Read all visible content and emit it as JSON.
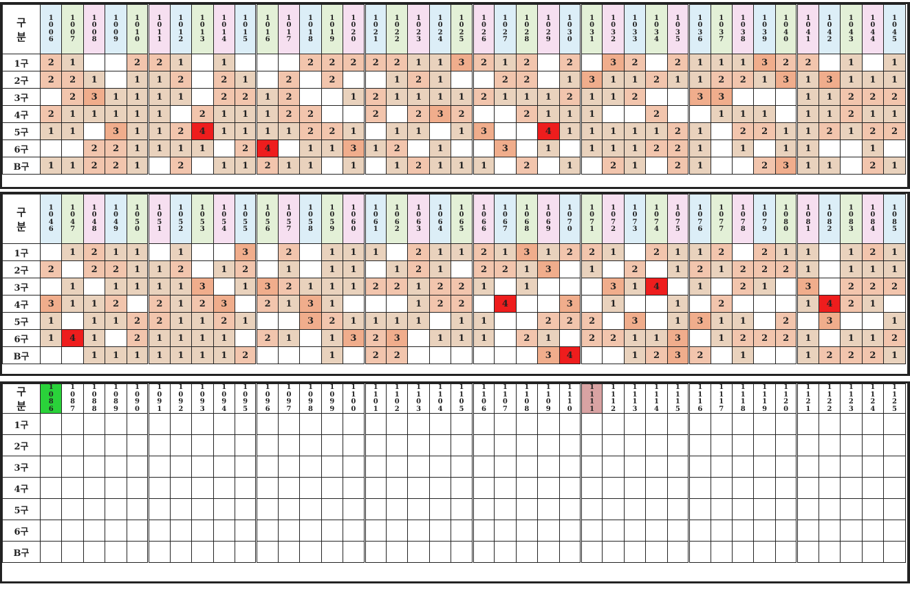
{
  "corner_label": "구\n분",
  "row_labels": [
    "1구",
    "2구",
    "3구",
    "4구",
    "5구",
    "6구",
    "B구"
  ],
  "colors": {
    "header_blue": "#dceef7",
    "header_green": "#e3f0d7",
    "header_pink": "#f6dff0",
    "current_draw_green": "#2ad23a",
    "marker_pink": "#d9a3a3",
    "count_1": "#e9d2bd",
    "count_2": "#f2c5ad",
    "count_3_high": "#f0ad8c",
    "count_max_red": "#ee1d1d"
  },
  "blocks": [
    {
      "headers": [
        "1006",
        "1007",
        "1008",
        "1009",
        "1010",
        "1011",
        "1012",
        "1013",
        "1014",
        "1015",
        "1016",
        "1017",
        "1018",
        "1019",
        "1020",
        "1021",
        "1022",
        "1023",
        "1024",
        "1025",
        "1026",
        "1027",
        "1028",
        "1029",
        "1030",
        "1031",
        "1032",
        "1033",
        "1034",
        "1035",
        "1036",
        "1037",
        "1038",
        "1039",
        "1040",
        "1041",
        "1042",
        "1043",
        "1044",
        "1045"
      ],
      "rows": [
        [
          "2",
          "1",
          "",
          "",
          "2",
          "2",
          "1",
          "",
          "1",
          "",
          "",
          "",
          "2",
          "2",
          "2",
          "2",
          "2",
          "1",
          "1",
          "3",
          "2",
          "1",
          "2",
          "",
          "2",
          "",
          "3",
          "2",
          "",
          "2",
          "1",
          "1",
          "1",
          "3",
          "2",
          "2",
          "",
          "1",
          "",
          "1"
        ],
        [
          "2",
          "2",
          "1",
          "",
          "1",
          "1",
          "2",
          "",
          "2",
          "1",
          "",
          "2",
          "",
          "2",
          "",
          "",
          "1",
          "2",
          "1",
          "",
          "",
          "2",
          "2",
          "",
          "1",
          "3",
          "1",
          "1",
          "2",
          "1",
          "1",
          "2",
          "2",
          "1",
          "3",
          "1",
          "3",
          "1",
          "1",
          "1"
        ],
        [
          "",
          "2",
          "3",
          "1",
          "1",
          "1",
          "1",
          "",
          "2",
          "2",
          "1",
          "2",
          "",
          "",
          "1",
          "2",
          "1",
          "1",
          "1",
          "1",
          "2",
          "1",
          "1",
          "1",
          "2",
          "1",
          "1",
          "2",
          "",
          "",
          "3",
          "3",
          "",
          "",
          "",
          "1",
          "1",
          "2",
          "2",
          "2"
        ],
        [
          "2",
          "1",
          "1",
          "1",
          "1",
          "1",
          "",
          "2",
          "1",
          "1",
          "1",
          "2",
          "2",
          "",
          "",
          "2",
          "",
          "2",
          "3",
          "2",
          "",
          "",
          "2",
          "1",
          "1",
          "1",
          "",
          "",
          "2",
          "",
          "",
          "1",
          "1",
          "1",
          "",
          "1",
          "1",
          "2",
          "1",
          "1"
        ],
        [
          "1",
          "1",
          "",
          "3",
          "1",
          "1",
          "2",
          "4",
          "1",
          "1",
          "1",
          "1",
          "2",
          "2",
          "1",
          "",
          "1",
          "1",
          "",
          "1",
          "3",
          "",
          "",
          "4",
          "1",
          "1",
          "1",
          "1",
          "1",
          "2",
          "1",
          "",
          "2",
          "2",
          "1",
          "1",
          "2",
          "1",
          "2",
          "2"
        ],
        [
          "",
          "",
          "2",
          "2",
          "1",
          "1",
          "1",
          "1",
          "",
          "2",
          "4",
          "",
          "1",
          "1",
          "3",
          "1",
          "2",
          "",
          "1",
          "",
          "",
          "3",
          "",
          "1",
          "",
          "1",
          "1",
          "1",
          "2",
          "2",
          "1",
          "",
          "1",
          "",
          "1",
          "1",
          "",
          "",
          "1",
          ""
        ],
        [
          "1",
          "1",
          "2",
          "2",
          "1",
          "",
          "2",
          "",
          "1",
          "1",
          "2",
          "1",
          "1",
          "",
          "1",
          "",
          "1",
          "2",
          "1",
          "1",
          "1",
          "",
          "2",
          "",
          "1",
          "",
          "2",
          "1",
          "",
          "2",
          "1",
          "",
          "",
          "2",
          "3",
          "1",
          "1",
          "",
          "2",
          "1"
        ]
      ]
    },
    {
      "headers": [
        "1046",
        "1047",
        "1048",
        "1049",
        "1050",
        "1051",
        "1052",
        "1053",
        "1054",
        "1055",
        "1056",
        "1057",
        "1058",
        "1059",
        "1060",
        "1061",
        "1062",
        "1063",
        "1064",
        "1065",
        "1066",
        "1067",
        "1068",
        "1069",
        "1070",
        "1071",
        "1072",
        "1073",
        "1074",
        "1075",
        "1076",
        "1077",
        "1078",
        "1079",
        "1080",
        "1081",
        "1082",
        "1083",
        "1084",
        "1085"
      ],
      "rows": [
        [
          "",
          "1",
          "2",
          "1",
          "1",
          "",
          "1",
          "",
          "",
          "3",
          "",
          "2",
          "",
          "1",
          "1",
          "1",
          "",
          "2",
          "1",
          "1",
          "2",
          "1",
          "3",
          "1",
          "2",
          "2",
          "1",
          "",
          "2",
          "1",
          "1",
          "2",
          "",
          "2",
          "1",
          "1",
          "",
          "1",
          "2",
          "1"
        ],
        [
          "2",
          "",
          "2",
          "2",
          "1",
          "1",
          "2",
          "",
          "1",
          "2",
          "",
          "1",
          "",
          "1",
          "1",
          "",
          "1",
          "2",
          "1",
          "",
          "2",
          "2",
          "1",
          "3",
          "",
          "1",
          "",
          "2",
          "",
          "1",
          "2",
          "1",
          "2",
          "2",
          "2",
          "1",
          "",
          "1",
          "1",
          "1"
        ],
        [
          "",
          "1",
          "",
          "1",
          "1",
          "1",
          "1",
          "3",
          "",
          "1",
          "3",
          "2",
          "1",
          "1",
          "1",
          "2",
          "2",
          "1",
          "2",
          "2",
          "1",
          "",
          "1",
          "",
          "",
          "",
          "3",
          "1",
          "4",
          "",
          "1",
          "",
          "2",
          "1",
          "",
          "3",
          "",
          "2",
          "2",
          "2"
        ],
        [
          "3",
          "1",
          "1",
          "2",
          "",
          "2",
          "1",
          "2",
          "3",
          "",
          "2",
          "1",
          "3",
          "1",
          "",
          "",
          "",
          "1",
          "2",
          "2",
          "",
          "4",
          "",
          "",
          "3",
          "",
          "1",
          "",
          "",
          "1",
          "",
          "2",
          "",
          "",
          "",
          "1",
          "4",
          "2",
          "1",
          ""
        ],
        [
          "1",
          "",
          "1",
          "1",
          "2",
          "2",
          "1",
          "1",
          "2",
          "1",
          "",
          "",
          "3",
          "2",
          "1",
          "1",
          "1",
          "1",
          "",
          "1",
          "1",
          "",
          "",
          "2",
          "2",
          "2",
          "",
          "3",
          "",
          "1",
          "3",
          "1",
          "1",
          "",
          "2",
          "",
          "3",
          "",
          "",
          "1"
        ],
        [
          "1",
          "4",
          "1",
          "",
          "2",
          "1",
          "1",
          "1",
          "1",
          "",
          "2",
          "1",
          "",
          "1",
          "3",
          "2",
          "3",
          "",
          "1",
          "1",
          "1",
          "",
          "2",
          "1",
          "",
          "2",
          "2",
          "1",
          "1",
          "3",
          "",
          "1",
          "2",
          "2",
          "2",
          "1",
          "",
          "1",
          "1",
          "2"
        ],
        [
          "",
          "",
          "1",
          "1",
          "1",
          "1",
          "1",
          "1",
          "1",
          "2",
          "",
          "",
          "",
          "1",
          "",
          "2",
          "2",
          "",
          "",
          "",
          "",
          "",
          "",
          "3",
          "4",
          "",
          "",
          "1",
          "2",
          "3",
          "2",
          "",
          "1",
          "",
          "",
          "1",
          "2",
          "2",
          "2",
          "1"
        ]
      ]
    },
    {
      "headers": [
        "1086",
        "1087",
        "1088",
        "1089",
        "1090",
        "1091",
        "1092",
        "1093",
        "1094",
        "1095",
        "1096",
        "1097",
        "1098",
        "1099",
        "1100",
        "1101",
        "1102",
        "1103",
        "1104",
        "1105",
        "1106",
        "1107",
        "1108",
        "1109",
        "1110",
        "1111",
        "1112",
        "1113",
        "1114",
        "1115",
        "1116",
        "1117",
        "1118",
        "1119",
        "1120",
        "1121",
        "1122",
        "1123",
        "1124",
        "1125"
      ],
      "rows": [
        [
          "",
          "",
          "",
          "",
          "",
          "",
          "",
          "",
          "",
          "",
          "",
          "",
          "",
          "",
          "",
          "",
          "",
          "",
          "",
          "",
          "",
          "",
          "",
          "",
          "",
          "",
          "",
          "",
          "",
          "",
          "",
          "",
          "",
          "",
          "",
          "",
          "",
          "",
          "",
          ""
        ],
        [
          "",
          "",
          "",
          "",
          "",
          "",
          "",
          "",
          "",
          "",
          "",
          "",
          "",
          "",
          "",
          "",
          "",
          "",
          "",
          "",
          "",
          "",
          "",
          "",
          "",
          "",
          "",
          "",
          "",
          "",
          "",
          "",
          "",
          "",
          "",
          "",
          "",
          "",
          "",
          ""
        ],
        [
          "",
          "",
          "",
          "",
          "",
          "",
          "",
          "",
          "",
          "",
          "",
          "",
          "",
          "",
          "",
          "",
          "",
          "",
          "",
          "",
          "",
          "",
          "",
          "",
          "",
          "",
          "",
          "",
          "",
          "",
          "",
          "",
          "",
          "",
          "",
          "",
          "",
          "",
          "",
          ""
        ],
        [
          "",
          "",
          "",
          "",
          "",
          "",
          "",
          "",
          "",
          "",
          "",
          "",
          "",
          "",
          "",
          "",
          "",
          "",
          "",
          "",
          "",
          "",
          "",
          "",
          "",
          "",
          "",
          "",
          "",
          "",
          "",
          "",
          "",
          "",
          "",
          "",
          "",
          "",
          "",
          ""
        ],
        [
          "",
          "",
          "",
          "",
          "",
          "",
          "",
          "",
          "",
          "",
          "",
          "",
          "",
          "",
          "",
          "",
          "",
          "",
          "",
          "",
          "",
          "",
          "",
          "",
          "",
          "",
          "",
          "",
          "",
          "",
          "",
          "",
          "",
          "",
          "",
          "",
          "",
          "",
          "",
          ""
        ],
        [
          "",
          "",
          "",
          "",
          "",
          "",
          "",
          "",
          "",
          "",
          "",
          "",
          "",
          "",
          "",
          "",
          "",
          "",
          "",
          "",
          "",
          "",
          "",
          "",
          "",
          "",
          "",
          "",
          "",
          "",
          "",
          "",
          "",
          "",
          "",
          "",
          "",
          "",
          "",
          ""
        ],
        [
          "",
          "",
          "",
          "",
          "",
          "",
          "",
          "",
          "",
          "",
          "",
          "",
          "",
          "",
          "",
          "",
          "",
          "",
          "",
          "",
          "",
          "",
          "",
          "",
          "",
          "",
          "",
          "",
          "",
          "",
          "",
          "",
          "",
          "",
          "",
          "",
          "",
          "",
          "",
          ""
        ]
      ]
    }
  ]
}
